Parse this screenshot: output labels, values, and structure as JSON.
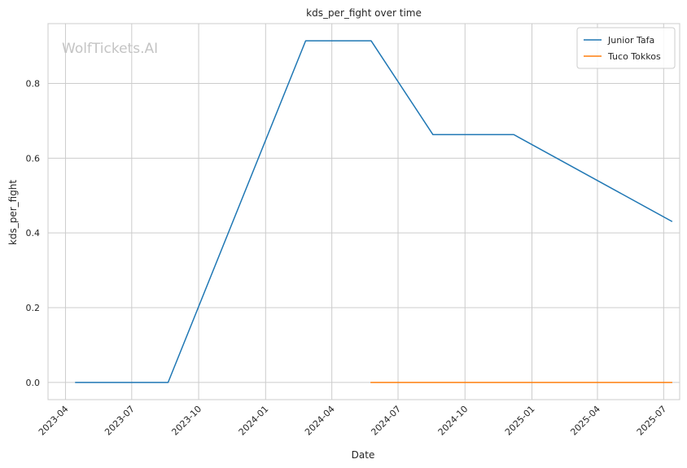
{
  "chart_data": {
    "type": "line",
    "title": "kds_per_fight over time",
    "xlabel": "Date",
    "ylabel": "kds_per_fight",
    "watermark": "WolfTickets.AI",
    "x_axis_kind": "date",
    "xlim": [
      "2023-03-08",
      "2025-07-23"
    ],
    "ylim": [
      -0.046,
      0.96
    ],
    "x_ticks": [
      "2023-04",
      "2023-07",
      "2023-10",
      "2024-01",
      "2024-04",
      "2024-07",
      "2024-10",
      "2025-01",
      "2025-04",
      "2025-07"
    ],
    "x_tick_dates": [
      "2023-04-01",
      "2023-07-01",
      "2023-10-01",
      "2024-01-01",
      "2024-04-01",
      "2024-07-01",
      "2024-10-01",
      "2025-01-01",
      "2025-04-01",
      "2025-07-01"
    ],
    "y_ticks": [
      0.0,
      0.2,
      0.4,
      0.6,
      0.8
    ],
    "y_tick_labels": [
      "0.0",
      "0.2",
      "0.4",
      "0.6",
      "0.8"
    ],
    "grid": true,
    "legend_position": "top-right",
    "series": [
      {
        "name": "Junior Tafa",
        "color": "#1f77b4",
        "x": [
          "2023-04-15",
          "2023-08-20",
          "2024-02-25",
          "2024-05-25",
          "2024-08-18",
          "2024-12-07",
          "2025-07-12"
        ],
        "y": [
          0.0,
          0.0,
          0.914,
          0.914,
          0.663,
          0.663,
          0.431
        ]
      },
      {
        "name": "Tuco Tokkos",
        "color": "#ff7f0e",
        "x": [
          "2024-05-25",
          "2025-07-12"
        ],
        "y": [
          0.0,
          0.0
        ]
      }
    ]
  }
}
